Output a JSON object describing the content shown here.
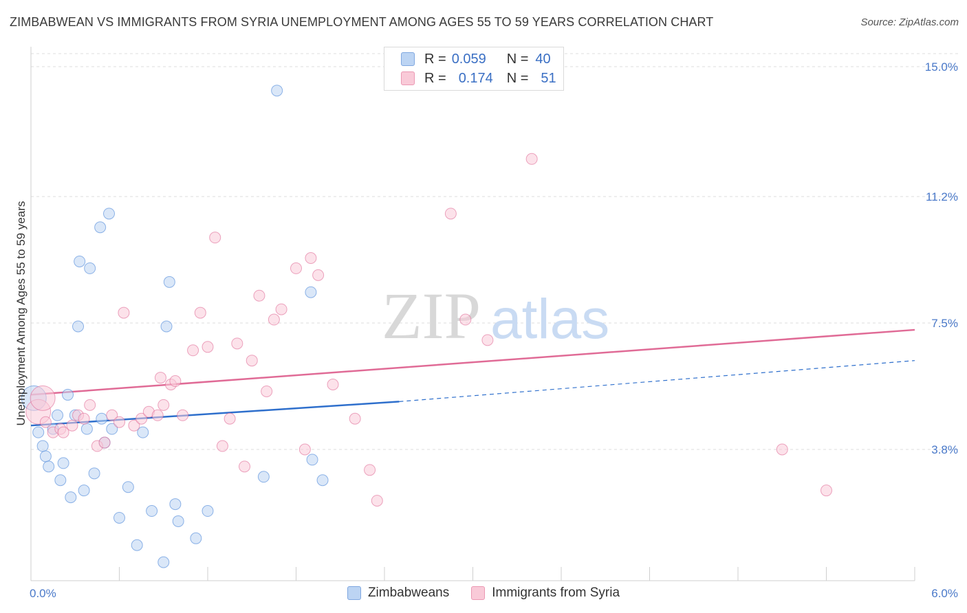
{
  "header": {
    "title": "ZIMBABWEAN VS IMMIGRANTS FROM SYRIA UNEMPLOYMENT AMONG AGES 55 TO 59 YEARS CORRELATION CHART",
    "source": "Source: ZipAtlas.com"
  },
  "watermark": {
    "part1": "ZIP",
    "part2": "atlas"
  },
  "legend": {
    "rows": [
      {
        "r_label": "R =",
        "r_value": "0.059",
        "n_label": "N =",
        "n_value": "40",
        "color": "#a9c7ef"
      },
      {
        "r_label": "R =",
        "r_value": "0.174",
        "n_label": "N =",
        "n_value": "51",
        "color": "#f5b3c8"
      }
    ]
  },
  "bottom_legend": {
    "items": [
      {
        "label": "Zimbabweans",
        "color": "#a9c7ef"
      },
      {
        "label": "Immigrants from Syria",
        "color": "#f5b3c8"
      }
    ]
  },
  "chart_data": {
    "type": "scatter",
    "ylabel": "Unemployment Among Ages 55 to 59 years",
    "xlim": [
      0,
      6
    ],
    "ylim": [
      0,
      15.5
    ],
    "y_ticks": [
      {
        "value": 3.8,
        "label": "3.8%"
      },
      {
        "value": 7.5,
        "label": "7.5%"
      },
      {
        "value": 11.2,
        "label": "11.2%"
      },
      {
        "value": 15.0,
        "label": "15.0%"
      }
    ],
    "x_tick_labels": {
      "left": "0.0%",
      "right": "6.0%"
    },
    "grid": true,
    "series": [
      {
        "name": "Zimbabweans",
        "color": "#4a86d8",
        "fill": "#bcd4f3",
        "trend": {
          "x0": 0.0,
          "y0": 4.5,
          "x1": 2.5,
          "y1": 5.2,
          "dash_to_x": 6.0,
          "dash_to_y": 6.4,
          "color": "#2e6fcc"
        },
        "points": [
          [
            0.02,
            5.3
          ],
          [
            0.05,
            4.3
          ],
          [
            0.08,
            3.9
          ],
          [
            0.1,
            3.6
          ],
          [
            0.12,
            3.3
          ],
          [
            0.15,
            4.4
          ],
          [
            0.18,
            4.8
          ],
          [
            0.2,
            2.9
          ],
          [
            0.22,
            3.4
          ],
          [
            0.25,
            5.4
          ],
          [
            0.27,
            2.4
          ],
          [
            0.3,
            4.8
          ],
          [
            0.32,
            7.4
          ],
          [
            0.33,
            9.3
          ],
          [
            0.36,
            2.6
          ],
          [
            0.38,
            4.4
          ],
          [
            0.4,
            9.1
          ],
          [
            0.43,
            3.1
          ],
          [
            0.47,
            10.3
          ],
          [
            0.48,
            4.7
          ],
          [
            0.5,
            4.0
          ],
          [
            0.53,
            10.7
          ],
          [
            0.6,
            1.8
          ],
          [
            0.66,
            2.7
          ],
          [
            0.72,
            1.0
          ],
          [
            0.76,
            4.3
          ],
          [
            0.82,
            2.0
          ],
          [
            0.9,
            0.5
          ],
          [
            0.94,
            8.7
          ],
          [
            0.98,
            2.2
          ],
          [
            0.92,
            7.4
          ],
          [
            1.0,
            1.7
          ],
          [
            1.12,
            1.2
          ],
          [
            1.2,
            2.0
          ],
          [
            1.58,
            3.0
          ],
          [
            1.67,
            14.3
          ],
          [
            1.9,
            8.4
          ],
          [
            1.91,
            3.5
          ],
          [
            1.98,
            2.9
          ],
          [
            0.55,
            4.4
          ]
        ]
      },
      {
        "name": "Immigrants from Syria",
        "color": "#e06b96",
        "fill": "#f9cad8",
        "trend": {
          "x0": 0.0,
          "y0": 5.4,
          "x1": 6.0,
          "y1": 7.3,
          "color": "#e06b96"
        },
        "points": [
          [
            0.05,
            4.9
          ],
          [
            0.08,
            5.3
          ],
          [
            0.1,
            4.6
          ],
          [
            0.15,
            4.3
          ],
          [
            0.2,
            4.4
          ],
          [
            0.22,
            4.3
          ],
          [
            0.28,
            4.5
          ],
          [
            0.32,
            4.8
          ],
          [
            0.36,
            4.7
          ],
          [
            0.4,
            5.1
          ],
          [
            0.45,
            3.9
          ],
          [
            0.5,
            4.0
          ],
          [
            0.55,
            4.8
          ],
          [
            0.6,
            4.6
          ],
          [
            0.63,
            7.8
          ],
          [
            0.7,
            4.5
          ],
          [
            0.75,
            4.7
          ],
          [
            0.8,
            4.9
          ],
          [
            0.86,
            4.8
          ],
          [
            0.9,
            5.1
          ],
          [
            0.95,
            5.7
          ],
          [
            0.98,
            5.8
          ],
          [
            1.03,
            4.8
          ],
          [
            1.1,
            6.7
          ],
          [
            1.15,
            7.8
          ],
          [
            1.2,
            6.8
          ],
          [
            1.25,
            10.0
          ],
          [
            1.3,
            3.9
          ],
          [
            1.35,
            4.7
          ],
          [
            1.4,
            6.9
          ],
          [
            1.45,
            3.3
          ],
          [
            1.5,
            6.4
          ],
          [
            1.55,
            8.3
          ],
          [
            1.6,
            5.5
          ],
          [
            1.65,
            7.6
          ],
          [
            1.7,
            7.9
          ],
          [
            1.8,
            9.1
          ],
          [
            1.86,
            3.8
          ],
          [
            1.9,
            9.4
          ],
          [
            1.95,
            8.9
          ],
          [
            2.05,
            5.7
          ],
          [
            2.2,
            4.7
          ],
          [
            2.3,
            3.2
          ],
          [
            2.35,
            2.3
          ],
          [
            2.85,
            10.7
          ],
          [
            2.95,
            7.6
          ],
          [
            3.1,
            7.0
          ],
          [
            3.4,
            12.3
          ],
          [
            0.88,
            5.9
          ],
          [
            5.1,
            3.8
          ],
          [
            5.4,
            2.6
          ]
        ]
      }
    ]
  }
}
